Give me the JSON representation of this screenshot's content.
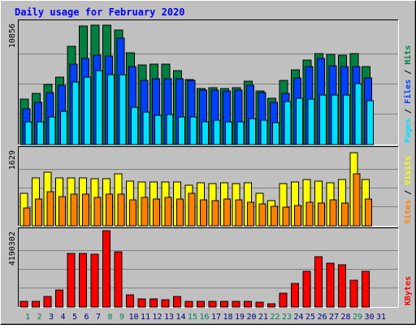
{
  "title": "Daily usage for February 2020",
  "colors": {
    "background": "#c0c0c0",
    "title_text": "#0000ff",
    "hits": "#008040",
    "files": "#0040ff",
    "pages": "#00e0ff",
    "visits": "#ffff00",
    "sites": "#ff8000",
    "kbytes": "#ff0000",
    "weekend_day_label": "#00805c",
    "weekday_day_label": "#000080"
  },
  "chart_data": [
    {
      "type": "bar",
      "panel": "hits-files-pages",
      "ylabel_top_value": "10856",
      "ylim": [
        0,
        10856
      ],
      "legend": [
        "Pages",
        "Files",
        "Hits"
      ],
      "categories": [
        "1",
        "2",
        "3",
        "4",
        "5",
        "6",
        "7",
        "8",
        "9",
        "10",
        "11",
        "12",
        "13",
        "14",
        "15",
        "16",
        "17",
        "18",
        "19",
        "20",
        "21",
        "22",
        "23",
        "24",
        "25",
        "26",
        "27",
        "28",
        "29",
        "30",
        "31"
      ],
      "series": [
        {
          "name": "Hits",
          "values": [
            4050,
            4550,
            5350,
            6000,
            8750,
            10600,
            10640,
            10650,
            10240,
            8200,
            7100,
            7150,
            7150,
            6600,
            5800,
            5000,
            5100,
            5000,
            5100,
            5650,
            4800,
            4150,
            5750,
            6650,
            7550,
            8100,
            8000,
            7950,
            8100,
            6950,
            0
          ]
        },
        {
          "name": "Files",
          "values": [
            3200,
            3750,
            4650,
            5250,
            7200,
            7700,
            7950,
            7900,
            9500,
            6950,
            5700,
            5850,
            5850,
            5850,
            5700,
            4850,
            4850,
            4800,
            4850,
            5250,
            4600,
            3750,
            4550,
            5900,
            6950,
            7700,
            7000,
            6950,
            6950,
            5950,
            0
          ]
        },
        {
          "name": "Pages",
          "values": [
            2050,
            2050,
            2450,
            3000,
            5600,
            6000,
            6550,
            6200,
            6250,
            3350,
            2900,
            2600,
            2650,
            2450,
            2450,
            2050,
            2150,
            2050,
            2050,
            2300,
            2150,
            1950,
            3850,
            4150,
            4050,
            4400,
            4400,
            4400,
            5400,
            3900,
            0
          ]
        }
      ]
    },
    {
      "type": "bar",
      "panel": "visits-sites",
      "ylabel_top_value": "1629",
      "ylim": [
        0,
        1629
      ],
      "legend": [
        "Sites",
        "Visits"
      ],
      "categories": [
        "1",
        "2",
        "3",
        "4",
        "5",
        "6",
        "7",
        "8",
        "9",
        "10",
        "11",
        "12",
        "13",
        "14",
        "15",
        "16",
        "17",
        "18",
        "19",
        "20",
        "21",
        "22",
        "23",
        "24",
        "25",
        "26",
        "27",
        "28",
        "29",
        "30",
        "31"
      ],
      "series": [
        {
          "name": "Visits",
          "values": [
            700,
            1030,
            1150,
            1030,
            1020,
            1030,
            1000,
            1010,
            1110,
            950,
            930,
            930,
            930,
            940,
            860,
            910,
            900,
            910,
            900,
            910,
            690,
            530,
            900,
            930,
            980,
            960,
            910,
            980,
            1560,
            980,
            0
          ]
        },
        {
          "name": "Sites",
          "values": [
            380,
            580,
            730,
            620,
            670,
            670,
            610,
            680,
            670,
            550,
            600,
            580,
            600,
            580,
            690,
            550,
            540,
            570,
            560,
            510,
            460,
            420,
            400,
            430,
            510,
            480,
            560,
            480,
            1110,
            570,
            0
          ]
        }
      ]
    },
    {
      "type": "bar",
      "panel": "kbytes",
      "ylabel_top_value": "4190302",
      "ylim": [
        0,
        4190302
      ],
      "legend": [
        "KBytes"
      ],
      "categories": [
        "1",
        "2",
        "3",
        "4",
        "5",
        "6",
        "7",
        "8",
        "9",
        "10",
        "11",
        "12",
        "13",
        "14",
        "15",
        "16",
        "17",
        "18",
        "19",
        "20",
        "21",
        "22",
        "23",
        "24",
        "25",
        "26",
        "27",
        "28",
        "29",
        "30",
        "31"
      ],
      "series": [
        {
          "name": "KBytes",
          "values": [
            290000,
            330000,
            560000,
            950000,
            2960000,
            2960000,
            2880000,
            4190000,
            3050000,
            660000,
            440000,
            430000,
            400000,
            560000,
            320000,
            330000,
            320000,
            310000,
            320000,
            300000,
            280000,
            160000,
            740000,
            1310000,
            1940000,
            2780000,
            2420000,
            2310000,
            1460000,
            1980000,
            0
          ]
        }
      ]
    }
  ]
}
